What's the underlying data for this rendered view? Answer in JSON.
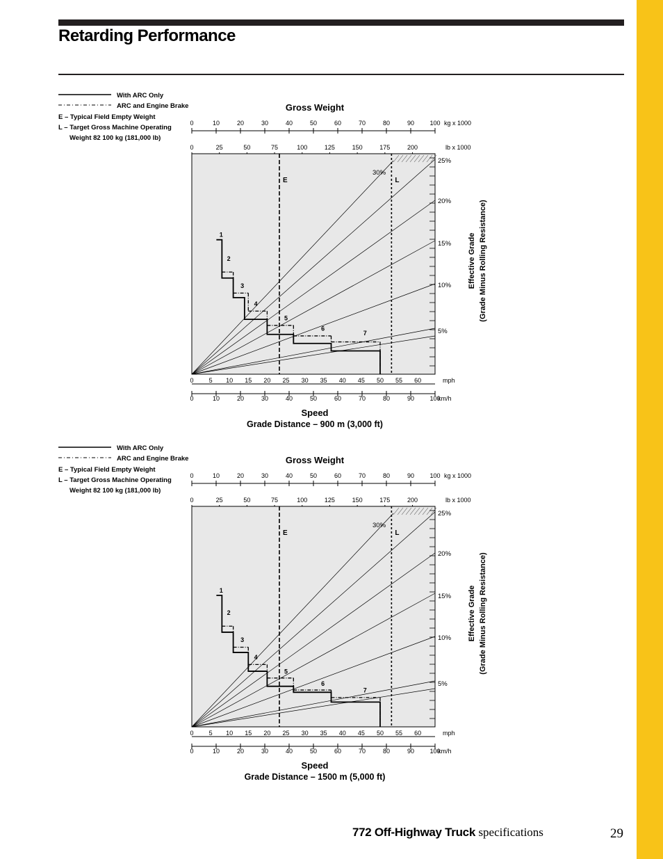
{
  "page": {
    "title": "Retarding Performance",
    "footer_product": "772 Off-Highway Truck",
    "footer_spec": "specifications",
    "page_number": "29",
    "accent_color": "#F8C318"
  },
  "chart_data": [
    {
      "type": "line",
      "title": "Gross Weight",
      "xlabel": "Speed",
      "subtitle": "Grade Distance – 900 m (3,000 ft)",
      "y2label_line1": "Effective Grade",
      "y2label_line2": "(Grade Minus Rolling Resistance)",
      "legend": [
        {
          "style": "solid",
          "label": "With ARC Only"
        },
        {
          "style": "dashdot",
          "label": "ARC and Engine Brake"
        },
        {
          "style": "text",
          "label": "E – Typical Field Empty Weight"
        },
        {
          "style": "text",
          "label": "L – Target Gross Machine Operating"
        },
        {
          "style": "text",
          "label": "Weight 82 100 kg (181,000 lb)"
        }
      ],
      "gross_weight_kg_ticks": [
        "0",
        "10",
        "20",
        "30",
        "40",
        "50",
        "60",
        "70",
        "80",
        "90",
        "100"
      ],
      "gross_weight_kg_unit": "kg x 1000",
      "gross_weight_lb_ticks": [
        "0",
        "25",
        "50",
        "75",
        "100",
        "125",
        "150",
        "175",
        "200"
      ],
      "gross_weight_lb_unit": "lb x 1000",
      "speed_mph_ticks": [
        "0",
        "5",
        "10",
        "15",
        "20",
        "25",
        "30",
        "35",
        "40",
        "45",
        "50",
        "55",
        "60"
      ],
      "speed_mph_unit": "mph",
      "speed_kmh_ticks": [
        "0",
        "10",
        "20",
        "30",
        "40",
        "50",
        "60",
        "70",
        "80",
        "90",
        "100"
      ],
      "speed_kmh_unit": "km/h",
      "grade_labels": [
        "25%",
        "20%",
        "15%",
        "10%",
        "5%"
      ],
      "steep_grade_label": "30%",
      "grades": [
        5,
        10,
        15,
        20,
        25,
        30
      ],
      "x_range_kg": [
        0,
        100
      ],
      "y_range_mph": [
        0,
        62
      ],
      "markers": [
        {
          "label": "E",
          "kg": 36
        },
        {
          "label": "L",
          "kg": 82.1
        }
      ],
      "arc_only_steps": [
        {
          "gear": "1",
          "speed_mph": 8,
          "grade": 17.9
        },
        {
          "gear": "2",
          "speed_mph": 11,
          "grade": 12.8
        },
        {
          "gear": "3",
          "speed_mph": 14,
          "grade": 10.2
        },
        {
          "gear": "4",
          "speed_mph": 20,
          "grade": 7.3
        },
        {
          "gear": "5",
          "speed_mph": 27,
          "grade": 5.3
        },
        {
          "gear": "6",
          "speed_mph": 37,
          "grade": 4.1
        },
        {
          "gear": "7",
          "speed_mph": 50,
          "grade": 3.1
        }
      ],
      "arc_engine_brake_steps": [
        {
          "gear": "2",
          "speed_mph": 11,
          "grade": 13.6
        },
        {
          "gear": "3",
          "speed_mph": 15,
          "grade": 10.8
        },
        {
          "gear": "4",
          "speed_mph": 20,
          "grade": 8.4
        },
        {
          "gear": "5",
          "speed_mph": 27,
          "grade": 6.5
        },
        {
          "gear": "6",
          "speed_mph": 37,
          "grade": 5.1
        },
        {
          "gear": "7",
          "speed_mph": 50,
          "grade": 4.3
        }
      ],
      "gear_label_positions": [
        {
          "gear": "1",
          "speed_mph": 7.8,
          "grade": 18.1
        },
        {
          "gear": "2",
          "speed_mph": 9.8,
          "grade": 14.9
        },
        {
          "gear": "3",
          "speed_mph": 13.4,
          "grade": 11.3
        },
        {
          "gear": "4",
          "speed_mph": 17.0,
          "grade": 8.9
        },
        {
          "gear": "5",
          "speed_mph": 25.0,
          "grade": 7.0
        },
        {
          "gear": "6",
          "speed_mph": 34.8,
          "grade": 5.6
        },
        {
          "gear": "7",
          "speed_mph": 46.0,
          "grade": 5.0
        }
      ]
    },
    {
      "type": "line",
      "title": "Gross Weight",
      "xlabel": "Speed",
      "subtitle": "Grade Distance – 1500 m (5,000 ft)",
      "y2label_line1": "Effective Grade",
      "y2label_line2": "(Grade Minus Rolling Resistance)",
      "legend": [
        {
          "style": "solid",
          "label": "With ARC Only"
        },
        {
          "style": "dashdot",
          "label": "ARC and Engine Brake"
        },
        {
          "style": "text",
          "label": "E – Typical Field Empty Weight"
        },
        {
          "style": "text",
          "label": "L – Target Gross Machine Operating"
        },
        {
          "style": "text",
          "label": "Weight 82 100 kg (181,000 lb)"
        }
      ],
      "gross_weight_kg_ticks": [
        "0",
        "10",
        "20",
        "30",
        "40",
        "50",
        "60",
        "70",
        "80",
        "90",
        "100"
      ],
      "gross_weight_kg_unit": "kg x 1000",
      "gross_weight_lb_ticks": [
        "0",
        "25",
        "50",
        "75",
        "100",
        "125",
        "150",
        "175",
        "200"
      ],
      "gross_weight_lb_unit": "lb x 1000",
      "speed_mph_ticks": [
        "0",
        "5",
        "10",
        "15",
        "20",
        "25",
        "30",
        "35",
        "40",
        "45",
        "50",
        "55",
        "60"
      ],
      "speed_mph_unit": "mph",
      "speed_kmh_ticks": [
        "0",
        "10",
        "20",
        "30",
        "40",
        "50",
        "60",
        "70",
        "80",
        "90",
        "100"
      ],
      "speed_kmh_unit": "km/h",
      "grade_labels": [
        "25%",
        "20%",
        "15%",
        "10%",
        "5%"
      ],
      "steep_grade_label": "30%",
      "grades": [
        5,
        10,
        15,
        20,
        25,
        30
      ],
      "x_range_kg": [
        0,
        100
      ],
      "y_range_mph": [
        0,
        62
      ],
      "markers": [
        {
          "label": "E",
          "kg": 36
        },
        {
          "label": "L",
          "kg": 82.1
        }
      ],
      "arc_only_steps": [
        {
          "gear": "1",
          "speed_mph": 8,
          "grade": 17.5
        },
        {
          "gear": "2",
          "speed_mph": 11,
          "grade": 12.6
        },
        {
          "gear": "3",
          "speed_mph": 15,
          "grade": 9.9
        },
        {
          "gear": "4",
          "speed_mph": 20,
          "grade": 7.4
        },
        {
          "gear": "5",
          "speed_mph": 27,
          "grade": 5.4
        },
        {
          "gear": "6",
          "speed_mph": 37,
          "grade": 4.6
        },
        {
          "gear": "7",
          "speed_mph": 50,
          "grade": 3.3
        }
      ],
      "arc_engine_brake_steps": [
        {
          "gear": "2",
          "speed_mph": 11,
          "grade": 13.4
        },
        {
          "gear": "3",
          "speed_mph": 15,
          "grade": 10.6
        },
        {
          "gear": "4",
          "speed_mph": 20,
          "grade": 8.3
        },
        {
          "gear": "5",
          "speed_mph": 27,
          "grade": 6.5
        },
        {
          "gear": "6",
          "speed_mph": 37,
          "grade": 4.9
        },
        {
          "gear": "7",
          "speed_mph": 50,
          "grade": 3.9
        }
      ],
      "gear_label_positions": [
        {
          "gear": "1",
          "speed_mph": 7.8,
          "grade": 17.7
        },
        {
          "gear": "2",
          "speed_mph": 9.8,
          "grade": 14.7
        },
        {
          "gear": "3",
          "speed_mph": 13.4,
          "grade": 11.1
        },
        {
          "gear": "4",
          "speed_mph": 17.0,
          "grade": 8.8
        },
        {
          "gear": "5",
          "speed_mph": 25.0,
          "grade": 6.9
        },
        {
          "gear": "6",
          "speed_mph": 34.8,
          "grade": 5.3
        },
        {
          "gear": "7",
          "speed_mph": 46.0,
          "grade": 4.4
        }
      ]
    }
  ]
}
